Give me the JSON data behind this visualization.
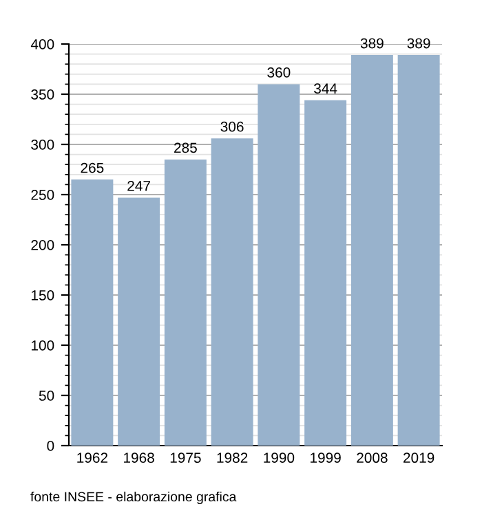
{
  "chart_data": {
    "type": "bar",
    "categories": [
      "1962",
      "1968",
      "1975",
      "1982",
      "1990",
      "1999",
      "2008",
      "2019"
    ],
    "values": [
      265,
      247,
      285,
      306,
      360,
      344,
      389,
      389
    ],
    "color": "#98b2cc",
    "ylim": [
      0,
      400
    ],
    "yticks": [
      0,
      50,
      100,
      150,
      200,
      250,
      300,
      350,
      400
    ],
    "grid": "y",
    "data_labels": true,
    "annotations": [
      "fonte INSEE - elaborazione grafica"
    ]
  }
}
